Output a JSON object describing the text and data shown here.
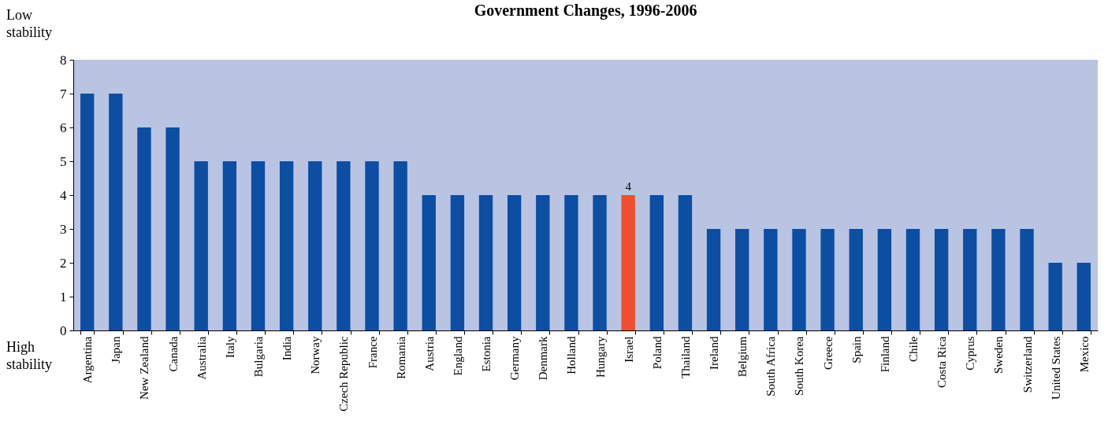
{
  "chart_data": {
    "type": "bar",
    "title": "Government Changes, 1996-2006",
    "categories": [
      "Argentina",
      "Japan",
      "New Zealand",
      "Canada",
      "Australia",
      "Italy",
      "Bulgaria",
      "India",
      "Norway",
      "Czech Republic",
      "France",
      "Romania",
      "Austria",
      "England",
      "Estonia",
      "Germany",
      "Denmark",
      "Holland",
      "Hungary",
      "Israel",
      "Poland",
      "Thailand",
      "Ireland",
      "Belgium",
      "South Africa",
      "South Korea",
      "Greece",
      "Spain",
      "Finland",
      "Chile",
      "Costa Rica",
      "Cyprus",
      "Sweden",
      "Switzerland",
      "United States",
      "Mexico"
    ],
    "values": [
      7,
      7,
      6,
      6,
      5,
      5,
      5,
      5,
      5,
      5,
      5,
      5,
      4,
      4,
      4,
      4,
      4,
      4,
      4,
      4,
      4,
      4,
      3,
      3,
      3,
      3,
      3,
      3,
      3,
      3,
      3,
      3,
      3,
      3,
      2,
      2
    ],
    "colors": [
      "#0b4ea2",
      "#0b4ea2",
      "#0b4ea2",
      "#0b4ea2",
      "#0b4ea2",
      "#0b4ea2",
      "#0b4ea2",
      "#0b4ea2",
      "#0b4ea2",
      "#0b4ea2",
      "#0b4ea2",
      "#0b4ea2",
      "#0b4ea2",
      "#0b4ea2",
      "#0b4ea2",
      "#0b4ea2",
      "#0b4ea2",
      "#0b4ea2",
      "#0b4ea2",
      "#f04e2f",
      "#0b4ea2",
      "#0b4ea2",
      "#0b4ea2",
      "#0b4ea2",
      "#0b4ea2",
      "#0b4ea2",
      "#0b4ea2",
      "#0b4ea2",
      "#0b4ea2",
      "#0b4ea2",
      "#0b4ea2",
      "#0b4ea2",
      "#0b4ea2",
      "#0b4ea2",
      "#0b4ea2",
      "#0b4ea2"
    ],
    "value_labels": [
      null,
      null,
      null,
      null,
      null,
      null,
      null,
      null,
      null,
      null,
      null,
      null,
      null,
      null,
      null,
      null,
      null,
      null,
      null,
      "4",
      null,
      null,
      null,
      null,
      null,
      null,
      null,
      null,
      null,
      null,
      null,
      null,
      null,
      null,
      null,
      null
    ],
    "ylim": [
      0,
      8
    ],
    "yticks": [
      0,
      1,
      2,
      3,
      4,
      5,
      6,
      7,
      8
    ],
    "grid": false,
    "annotations": [
      "Low stability",
      "High stability"
    ]
  }
}
